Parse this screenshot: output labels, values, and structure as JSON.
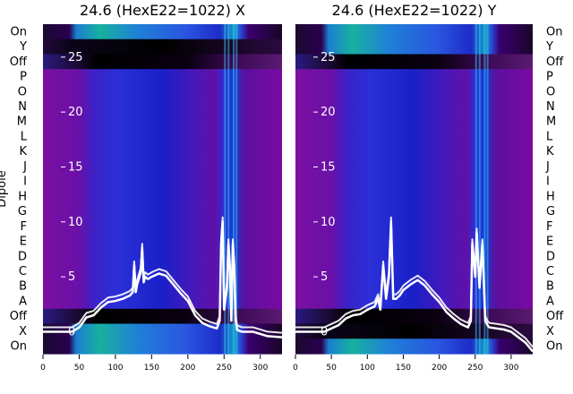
{
  "chart_data": [
    {
      "type": "heatmap",
      "title": "24.6 (HexE22=1022) X",
      "ylabel": "Dipole",
      "rows_top_to_bottom": [
        "On",
        "Y",
        "Off",
        "P",
        "O",
        "N",
        "M",
        "L",
        "K",
        "J",
        "I",
        "H",
        "G",
        "F",
        "E",
        "D",
        "C",
        "B",
        "A",
        "Off",
        "X",
        "On"
      ],
      "xlim": [
        0,
        330
      ],
      "x_ticks": [
        0,
        50,
        100,
        150,
        200,
        250,
        300
      ],
      "overlay_ylim": [
        -2,
        28
      ],
      "overlay_ticks": [
        0,
        5,
        10,
        15,
        20,
        25
      ],
      "overlay_series": [
        {
          "color": "#ffffff",
          "x": [
            0,
            40,
            50,
            60,
            70,
            80,
            90,
            100,
            110,
            120,
            124,
            126,
            128,
            130,
            135,
            137,
            139,
            141,
            145,
            150,
            160,
            170,
            180,
            190,
            200,
            210,
            220,
            230,
            240,
            244,
            246,
            248,
            250,
            252,
            254,
            256,
            258,
            260,
            262,
            264,
            266,
            268,
            270,
            275,
            280,
            290,
            300,
            310,
            330
          ],
          "y": [
            0,
            0,
            0.4,
            1.3,
            1.5,
            2.2,
            2.7,
            2.8,
            3.0,
            3.3,
            3.6,
            6.0,
            3.6,
            4.3,
            5.4,
            7.6,
            4.5,
            5.0,
            4.8,
            5.0,
            5.3,
            5.1,
            4.3,
            3.5,
            2.8,
            1.5,
            0.8,
            0.5,
            0.3,
            1.0,
            8.0,
            10.0,
            2.0,
            3.0,
            4.0,
            8.0,
            6.0,
            1.0,
            8.0,
            6.0,
            1.0,
            0.2,
            0.1,
            0,
            0,
            0,
            -0.2,
            -0.4,
            -0.5
          ]
        }
      ]
    },
    {
      "type": "heatmap",
      "title": "24.6 (HexE22=1022) Y",
      "ylabel": "",
      "rows_top_to_bottom": [
        "On",
        "Y",
        "Off",
        "P",
        "O",
        "N",
        "M",
        "L",
        "K",
        "J",
        "I",
        "H",
        "G",
        "F",
        "E",
        "D",
        "C",
        "B",
        "A",
        "Off",
        "X",
        "On"
      ],
      "xlim": [
        0,
        330
      ],
      "x_ticks": [
        0,
        50,
        100,
        150,
        200,
        250,
        300
      ],
      "overlay_ylim": [
        -2,
        28
      ],
      "overlay_ticks": [
        0,
        5,
        10,
        15,
        20,
        25
      ],
      "overlay_series": [
        {
          "color": "#ffffff",
          "x": [
            0,
            40,
            50,
            60,
            70,
            80,
            90,
            100,
            110,
            115,
            118,
            122,
            126,
            130,
            133,
            136,
            140,
            145,
            150,
            160,
            170,
            180,
            190,
            200,
            210,
            220,
            230,
            240,
            244,
            246,
            250,
            252,
            256,
            260,
            264,
            268,
            270,
            280,
            290,
            300,
            310,
            320,
            330
          ],
          "y": [
            0,
            0,
            0.3,
            0.6,
            1.2,
            1.5,
            1.6,
            2.0,
            2.3,
            3.0,
            2.0,
            6.0,
            3.0,
            5.0,
            10.0,
            3.0,
            3.0,
            3.3,
            3.8,
            4.3,
            4.7,
            4.2,
            3.4,
            2.7,
            1.8,
            1.2,
            0.7,
            0.4,
            1.0,
            8.0,
            5.0,
            9.0,
            4.0,
            8.0,
            1.0,
            0.5,
            0.4,
            0.3,
            0.2,
            0,
            -0.5,
            -1.0,
            -1.8
          ]
        }
      ]
    }
  ]
}
